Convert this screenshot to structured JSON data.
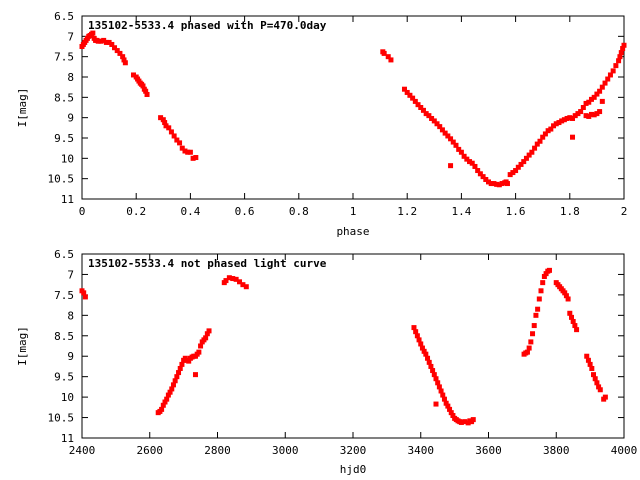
{
  "chart_data": [
    {
      "type": "scatter",
      "title": "135102-5533.4 phased with P=470.0day",
      "xlabel": "phase",
      "ylabel": "I[mag]",
      "xlim": [
        0,
        2
      ],
      "ylim": [
        11,
        6.5
      ],
      "y_inverted": true,
      "grid": false,
      "marker_color": "#ff0000",
      "x_ticks": [
        "0",
        "0.2",
        "0.4",
        "0.6",
        "0.8",
        "1",
        "1.2",
        "1.4",
        "1.6",
        "1.8",
        "2"
      ],
      "y_ticks": [
        "6.5",
        "7",
        "7.5",
        "8",
        "8.5",
        "9",
        "9.5",
        "10",
        "10.5",
        "11"
      ],
      "series": [
        {
          "points": [
            [
              0.0,
              7.25
            ],
            [
              0.005,
              7.2
            ],
            [
              0.01,
              7.15
            ],
            [
              0.015,
              7.1
            ],
            [
              0.02,
              7.05
            ],
            [
              0.025,
              7.0
            ],
            [
              0.03,
              6.98
            ],
            [
              0.035,
              6.95
            ],
            [
              0.04,
              6.92
            ],
            [
              0.045,
              7.05
            ],
            [
              0.05,
              7.1
            ],
            [
              0.055,
              7.1
            ],
            [
              0.06,
              7.12
            ],
            [
              0.07,
              7.12
            ],
            [
              0.08,
              7.1
            ],
            [
              0.09,
              7.15
            ],
            [
              0.1,
              7.15
            ],
            [
              0.11,
              7.2
            ],
            [
              0.12,
              7.28
            ],
            [
              0.13,
              7.35
            ],
            [
              0.14,
              7.42
            ],
            [
              0.15,
              7.5
            ],
            [
              0.155,
              7.58
            ],
            [
              0.16,
              7.65
            ],
            [
              0.19,
              7.95
            ],
            [
              0.2,
              8.0
            ],
            [
              0.205,
              8.05
            ],
            [
              0.21,
              8.1
            ],
            [
              0.215,
              8.15
            ],
            [
              0.22,
              8.18
            ],
            [
              0.225,
              8.22
            ],
            [
              0.23,
              8.3
            ],
            [
              0.235,
              8.35
            ],
            [
              0.24,
              8.43
            ],
            [
              0.29,
              9.0
            ],
            [
              0.3,
              9.05
            ],
            [
              0.305,
              9.12
            ],
            [
              0.31,
              9.2
            ],
            [
              0.32,
              9.25
            ],
            [
              0.33,
              9.35
            ],
            [
              0.34,
              9.45
            ],
            [
              0.35,
              9.55
            ],
            [
              0.36,
              9.62
            ],
            [
              0.37,
              9.75
            ],
            [
              0.38,
              9.82
            ],
            [
              0.39,
              9.85
            ],
            [
              0.4,
              9.85
            ],
            [
              0.41,
              10.0
            ],
            [
              0.42,
              9.98
            ],
            [
              1.11,
              7.38
            ],
            [
              1.115,
              7.42
            ],
            [
              1.13,
              7.5
            ],
            [
              1.14,
              7.58
            ],
            [
              1.19,
              8.3
            ],
            [
              1.2,
              8.38
            ],
            [
              1.21,
              8.45
            ],
            [
              1.22,
              8.52
            ],
            [
              1.23,
              8.6
            ],
            [
              1.24,
              8.68
            ],
            [
              1.25,
              8.75
            ],
            [
              1.26,
              8.82
            ],
            [
              1.27,
              8.9
            ],
            [
              1.28,
              8.95
            ],
            [
              1.29,
              9.02
            ],
            [
              1.3,
              9.08
            ],
            [
              1.31,
              9.15
            ],
            [
              1.32,
              9.22
            ],
            [
              1.33,
              9.3
            ],
            [
              1.34,
              9.38
            ],
            [
              1.35,
              9.45
            ],
            [
              1.36,
              9.52
            ],
            [
              1.37,
              9.6
            ],
            [
              1.38,
              9.68
            ],
            [
              1.39,
              9.78
            ],
            [
              1.4,
              9.85
            ],
            [
              1.41,
              9.95
            ],
            [
              1.42,
              10.02
            ],
            [
              1.43,
              10.08
            ],
            [
              1.44,
              10.12
            ],
            [
              1.45,
              10.2
            ],
            [
              1.46,
              10.3
            ],
            [
              1.47,
              10.38
            ],
            [
              1.48,
              10.45
            ],
            [
              1.49,
              10.52
            ],
            [
              1.5,
              10.58
            ],
            [
              1.51,
              10.62
            ],
            [
              1.52,
              10.62
            ],
            [
              1.53,
              10.64
            ],
            [
              1.54,
              10.65
            ],
            [
              1.55,
              10.62
            ],
            [
              1.56,
              10.6
            ],
            [
              1.565,
              10.58
            ],
            [
              1.57,
              10.62
            ],
            [
              1.36,
              10.18
            ],
            [
              1.58,
              10.4
            ],
            [
              1.59,
              10.35
            ],
            [
              1.6,
              10.3
            ],
            [
              1.61,
              10.22
            ],
            [
              1.62,
              10.15
            ],
            [
              1.63,
              10.08
            ],
            [
              1.64,
              10.0
            ],
            [
              1.65,
              9.92
            ],
            [
              1.66,
              9.85
            ],
            [
              1.67,
              9.75
            ],
            [
              1.68,
              9.65
            ],
            [
              1.69,
              9.58
            ],
            [
              1.7,
              9.48
            ],
            [
              1.71,
              9.4
            ],
            [
              1.72,
              9.32
            ],
            [
              1.73,
              9.28
            ],
            [
              1.74,
              9.2
            ],
            [
              1.75,
              9.15
            ],
            [
              1.76,
              9.12
            ],
            [
              1.77,
              9.08
            ],
            [
              1.78,
              9.05
            ],
            [
              1.79,
              9.02
            ],
            [
              1.8,
              9.0
            ],
            [
              1.81,
              9.02
            ],
            [
              1.82,
              8.95
            ],
            [
              1.83,
              8.9
            ],
            [
              1.84,
              8.85
            ],
            [
              1.85,
              8.75
            ],
            [
              1.86,
              8.65
            ],
            [
              1.87,
              8.62
            ],
            [
              1.88,
              8.55
            ],
            [
              1.89,
              8.5
            ],
            [
              1.9,
              8.42
            ],
            [
              1.91,
              8.35
            ],
            [
              1.92,
              8.25
            ],
            [
              1.93,
              8.15
            ],
            [
              1.94,
              8.05
            ],
            [
              1.95,
              7.95
            ],
            [
              1.96,
              7.85
            ],
            [
              1.97,
              7.72
            ],
            [
              1.98,
              7.6
            ],
            [
              1.985,
              7.5
            ],
            [
              1.99,
              7.4
            ],
            [
              1.995,
              7.3
            ],
            [
              2.0,
              7.22
            ],
            [
              1.81,
              9.48
            ],
            [
              1.86,
              8.95
            ],
            [
              1.87,
              8.97
            ],
            [
              1.88,
              8.92
            ],
            [
              1.89,
              8.93
            ],
            [
              1.9,
              8.9
            ],
            [
              1.91,
              8.85
            ],
            [
              1.92,
              8.6
            ]
          ]
        }
      ]
    },
    {
      "type": "scatter",
      "title": "135102-5533.4 not phased light curve",
      "xlabel": "hjd0",
      "ylabel": "I[mag]",
      "xlim": [
        2400,
        4000
      ],
      "ylim": [
        11,
        6.5
      ],
      "y_inverted": true,
      "grid": false,
      "marker_color": "#ff0000",
      "x_ticks": [
        "2400",
        "2600",
        "2800",
        "3000",
        "3200",
        "3400",
        "3600",
        "3800",
        "4000"
      ],
      "y_ticks": [
        "6.5",
        "7",
        "7.5",
        "8",
        "8.5",
        "9",
        "9.5",
        "10",
        "10.5",
        "11"
      ],
      "series": [
        {
          "points": [
            [
              2400,
              7.4
            ],
            [
              2405,
              7.45
            ],
            [
              2410,
              7.55
            ],
            [
              2625,
              10.38
            ],
            [
              2630,
              10.35
            ],
            [
              2635,
              10.3
            ],
            [
              2640,
              10.2
            ],
            [
              2645,
              10.12
            ],
            [
              2650,
              10.05
            ],
            [
              2655,
              9.95
            ],
            [
              2660,
              9.88
            ],
            [
              2665,
              9.8
            ],
            [
              2670,
              9.7
            ],
            [
              2675,
              9.6
            ],
            [
              2680,
              9.5
            ],
            [
              2685,
              9.4
            ],
            [
              2690,
              9.3
            ],
            [
              2695,
              9.2
            ],
            [
              2700,
              9.1
            ],
            [
              2705,
              9.05
            ],
            [
              2710,
              9.1
            ],
            [
              2715,
              9.12
            ],
            [
              2720,
              9.05
            ],
            [
              2725,
              9.02
            ],
            [
              2730,
              9.0
            ],
            [
              2735,
              9.0
            ],
            [
              2740,
              8.95
            ],
            [
              2745,
              8.9
            ],
            [
              2750,
              8.75
            ],
            [
              2755,
              8.65
            ],
            [
              2760,
              8.6
            ],
            [
              2765,
              8.55
            ],
            [
              2770,
              8.45
            ],
            [
              2775,
              8.38
            ],
            [
              2735,
              9.45
            ],
            [
              2820,
              7.2
            ],
            [
              2825,
              7.15
            ],
            [
              2835,
              7.08
            ],
            [
              2845,
              7.1
            ],
            [
              2855,
              7.12
            ],
            [
              2865,
              7.18
            ],
            [
              2875,
              7.25
            ],
            [
              2885,
              7.3
            ],
            [
              3380,
              8.3
            ],
            [
              3385,
              8.4
            ],
            [
              3390,
              8.5
            ],
            [
              3395,
              8.6
            ],
            [
              3400,
              8.7
            ],
            [
              3405,
              8.8
            ],
            [
              3410,
              8.88
            ],
            [
              3415,
              8.95
            ],
            [
              3420,
              9.05
            ],
            [
              3425,
              9.15
            ],
            [
              3430,
              9.25
            ],
            [
              3435,
              9.35
            ],
            [
              3440,
              9.45
            ],
            [
              3445,
              9.55
            ],
            [
              3450,
              9.65
            ],
            [
              3455,
              9.75
            ],
            [
              3460,
              9.85
            ],
            [
              3465,
              9.95
            ],
            [
              3470,
              10.05
            ],
            [
              3475,
              10.15
            ],
            [
              3480,
              10.22
            ],
            [
              3485,
              10.3
            ],
            [
              3490,
              10.38
            ],
            [
              3495,
              10.45
            ],
            [
              3500,
              10.52
            ],
            [
              3505,
              10.55
            ],
            [
              3510,
              10.58
            ],
            [
              3515,
              10.6
            ],
            [
              3520,
              10.62
            ],
            [
              3530,
              10.6
            ],
            [
              3540,
              10.63
            ],
            [
              3545,
              10.58
            ],
            [
              3550,
              10.6
            ],
            [
              3555,
              10.55
            ],
            [
              3445,
              10.17
            ],
            [
              3705,
              8.95
            ],
            [
              3710,
              8.92
            ],
            [
              3715,
              8.9
            ],
            [
              3720,
              8.8
            ],
            [
              3725,
              8.65
            ],
            [
              3730,
              8.45
            ],
            [
              3735,
              8.25
            ],
            [
              3740,
              8.0
            ],
            [
              3745,
              7.85
            ],
            [
              3750,
              7.6
            ],
            [
              3755,
              7.4
            ],
            [
              3760,
              7.2
            ],
            [
              3765,
              7.05
            ],
            [
              3770,
              6.98
            ],
            [
              3775,
              6.92
            ],
            [
              3780,
              6.9
            ],
            [
              3800,
              7.2
            ],
            [
              3805,
              7.25
            ],
            [
              3810,
              7.3
            ],
            [
              3815,
              7.35
            ],
            [
              3820,
              7.4
            ],
            [
              3825,
              7.45
            ],
            [
              3830,
              7.52
            ],
            [
              3835,
              7.6
            ],
            [
              3840,
              7.95
            ],
            [
              3845,
              8.05
            ],
            [
              3850,
              8.15
            ],
            [
              3855,
              8.25
            ],
            [
              3860,
              8.35
            ],
            [
              3890,
              9.0
            ],
            [
              3895,
              9.1
            ],
            [
              3900,
              9.2
            ],
            [
              3905,
              9.3
            ],
            [
              3910,
              9.45
            ],
            [
              3915,
              9.55
            ],
            [
              3920,
              9.65
            ],
            [
              3925,
              9.75
            ],
            [
              3930,
              9.82
            ],
            [
              3940,
              10.05
            ],
            [
              3945,
              10.0
            ]
          ]
        }
      ]
    }
  ]
}
